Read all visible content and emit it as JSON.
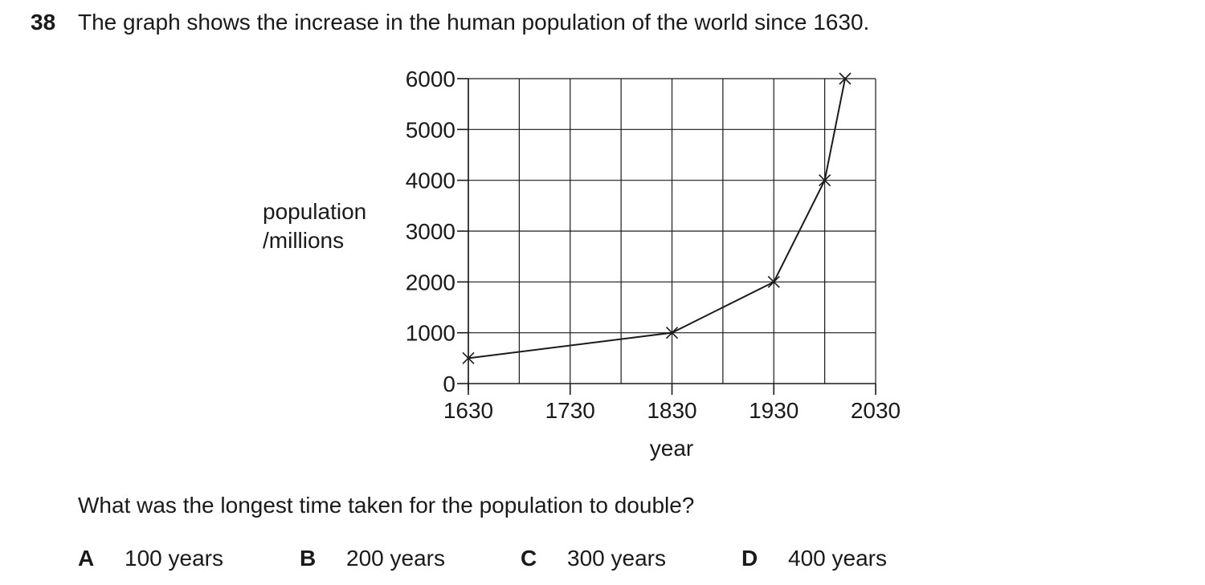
{
  "question": {
    "number": "38",
    "stem": "The graph shows the increase in the human population of the world since 1630.",
    "prompt": "What was the longest time taken for the population to double?",
    "options": [
      {
        "letter": "A",
        "text": "100 years"
      },
      {
        "letter": "B",
        "text": "200 years"
      },
      {
        "letter": "C",
        "text": "300 years"
      },
      {
        "letter": "D",
        "text": "400 years"
      }
    ]
  },
  "chart_data": {
    "type": "line",
    "title": "",
    "xlabel": "year",
    "ylabel_lines": [
      "population",
      "/millions"
    ],
    "xlim": [
      1630,
      2030
    ],
    "ylim": [
      0,
      6000
    ],
    "x_ticks": [
      1630,
      1730,
      1830,
      1930,
      2030
    ],
    "y_ticks": [
      0,
      1000,
      2000,
      3000,
      4000,
      5000,
      6000
    ],
    "x_gridlines": [
      1630,
      1680,
      1730,
      1780,
      1830,
      1880,
      1930,
      1980,
      2030
    ],
    "y_gridlines": [
      1000,
      2000,
      3000,
      4000,
      5000,
      6000
    ],
    "grid": true,
    "marker": "cross",
    "series": [
      {
        "x": [
          1630,
          1830,
          1930,
          1980,
          2000
        ],
        "y": [
          500,
          1000,
          2000,
          4000,
          6000
        ]
      }
    ]
  }
}
